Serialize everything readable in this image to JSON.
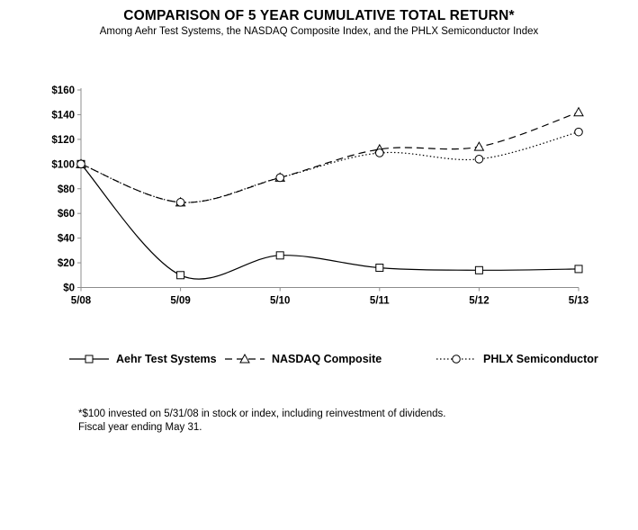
{
  "title": "COMPARISON OF 5 YEAR CUMULATIVE TOTAL RETURN*",
  "subtitle": "Among Aehr Test Systems, the NASDAQ Composite Index, and the PHLX Semiconductor Index",
  "footnote": {
    "line1": "*$100 invested on 5/31/08 in stock or index, including reinvestment of dividends.",
    "line2": "Fiscal year ending May 31."
  },
  "colors": {
    "background": "#ffffff",
    "axis": "#8c8c8c",
    "series_line": "#000000",
    "marker_fill": "#ffffff",
    "text": "#000000"
  },
  "chart_data": {
    "type": "line",
    "title": "COMPARISON OF 5 YEAR CUMULATIVE TOTAL RETURN*",
    "subtitle": "Among Aehr Test Systems, the NASDAQ Composite Index, and the PHLX Semiconductor Index",
    "categories": [
      "5/08",
      "5/09",
      "5/10",
      "5/11",
      "5/12",
      "5/13"
    ],
    "series": [
      {
        "name": "Aehr Test Systems",
        "marker": "square",
        "line_style": "solid",
        "values": [
          100,
          10,
          26,
          16,
          14,
          15
        ]
      },
      {
        "name": "NASDAQ Composite",
        "marker": "triangle",
        "line_style": "dashed",
        "values": [
          100,
          69,
          89,
          112,
          114,
          142
        ]
      },
      {
        "name": "PHLX Semiconductor",
        "marker": "circle",
        "line_style": "dotted",
        "values": [
          100,
          69,
          89,
          109,
          104,
          126
        ]
      }
    ],
    "xlabel": "",
    "ylabel": "",
    "ylim": [
      0,
      160
    ],
    "ytick_step": 20,
    "ytick_labels": [
      "$0",
      "$20",
      "$40",
      "$60",
      "$80",
      "$100",
      "$120",
      "$140",
      "$160"
    ],
    "grid": false,
    "legend_position": "bottom"
  }
}
